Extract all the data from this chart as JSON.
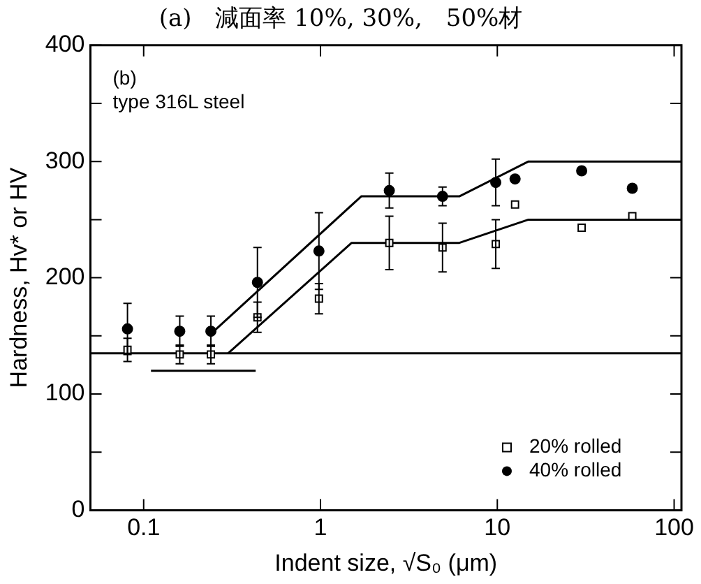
{
  "chart_data": {
    "type": "scatter",
    "title": "(a)　減面率 10%, 30%,　50%材",
    "xlabel": "Indent size, √S₀ (μm)",
    "ylabel": "Hardness, Hv* or HV",
    "annotations": [
      "(b)",
      "type 316L steel"
    ],
    "log": "x",
    "xlim": [
      0.05,
      110
    ],
    "xticks": [
      0.1,
      1,
      10,
      100
    ],
    "ylim": [
      0,
      400
    ],
    "yticks": [
      0,
      {
        "value": 50,
        "label": null
      },
      100,
      {
        "value": 150,
        "label": null
      },
      200,
      {
        "value": 250,
        "label": null
      },
      300,
      {
        "value": 350,
        "label": null
      },
      400
    ],
    "grid": false,
    "legend": "bottom right",
    "series": [
      {
        "name": "20% rolled",
        "marker": "square",
        "color": "#000000",
        "x": [
          0.081,
          0.16,
          0.24,
          0.44,
          0.98,
          2.45,
          4.9,
          9.8,
          12.6,
          30,
          58
        ],
        "values": [
          138,
          134,
          134,
          166,
          182,
          230,
          226,
          229,
          263,
          243,
          253
        ],
        "errors": [
          10,
          8,
          8,
          13,
          13,
          23,
          21,
          21,
          null,
          null,
          null
        ]
      },
      {
        "name": "40% rolled",
        "marker": "circle",
        "color": "#000000",
        "x": [
          0.081,
          0.16,
          0.24,
          0.44,
          0.98,
          2.45,
          4.9,
          9.8,
          12.6,
          30,
          58
        ],
        "values": [
          156,
          154,
          154,
          196,
          223,
          275,
          270,
          282,
          285,
          292,
          277
        ],
        "errors": [
          22,
          13,
          13,
          30,
          33,
          15,
          8,
          20,
          null,
          null,
          null
        ]
      },
      {
        "type": "line",
        "color": "#000000",
        "marker": "none",
        "x": [
          0.3,
          1.5,
          6.1,
          15,
          110
        ],
        "values": [
          135,
          230,
          230,
          250,
          250
        ]
      },
      {
        "type": "line",
        "color": "#000000",
        "marker": "none",
        "x": [
          0.245,
          1.7,
          6.1,
          15,
          110
        ],
        "values": [
          153,
          270,
          270,
          300,
          300
        ]
      },
      {
        "type": "line",
        "color": "#000000",
        "marker": "none",
        "x": [
          0.11,
          0.43
        ],
        "values": [
          120,
          120
        ]
      }
    ],
    "ref_lines": [
      {
        "axis": "y",
        "value": 135,
        "color": "#000000"
      }
    ]
  }
}
